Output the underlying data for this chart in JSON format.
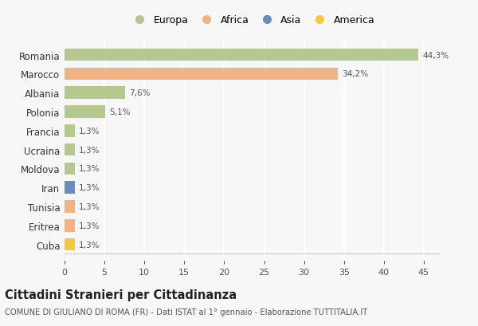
{
  "categories": [
    "Romania",
    "Marocco",
    "Albania",
    "Polonia",
    "Francia",
    "Ucraina",
    "Moldova",
    "Iran",
    "Tunisia",
    "Eritrea",
    "Cuba"
  ],
  "values": [
    44.3,
    34.2,
    7.6,
    5.1,
    1.3,
    1.3,
    1.3,
    1.3,
    1.3,
    1.3,
    1.3
  ],
  "labels": [
    "44,3%",
    "34,2%",
    "7,6%",
    "5,1%",
    "1,3%",
    "1,3%",
    "1,3%",
    "1,3%",
    "1,3%",
    "1,3%",
    "1,3%"
  ],
  "colors": [
    "#b5c98e",
    "#f0b482",
    "#b5c98e",
    "#b5c98e",
    "#b5c98e",
    "#b5c98e",
    "#b5c98e",
    "#6b8cbf",
    "#f0b482",
    "#f0b482",
    "#f5c842"
  ],
  "legend_labels": [
    "Europa",
    "Africa",
    "Asia",
    "America"
  ],
  "legend_colors": [
    "#b5c98e",
    "#f0b482",
    "#6b8cbf",
    "#f5c842"
  ],
  "title": "Cittadini Stranieri per Cittadinanza",
  "subtitle": "COMUNE DI GIULIANO DI ROMA (FR) - Dati ISTAT al 1° gennaio - Elaborazione TUTTITALIA.IT",
  "xlim": [
    0,
    47
  ],
  "xticks": [
    0,
    5,
    10,
    15,
    20,
    25,
    30,
    35,
    40,
    45
  ],
  "background_color": "#f7f7f7",
  "grid_color": "#ffffff",
  "bar_height": 0.65
}
